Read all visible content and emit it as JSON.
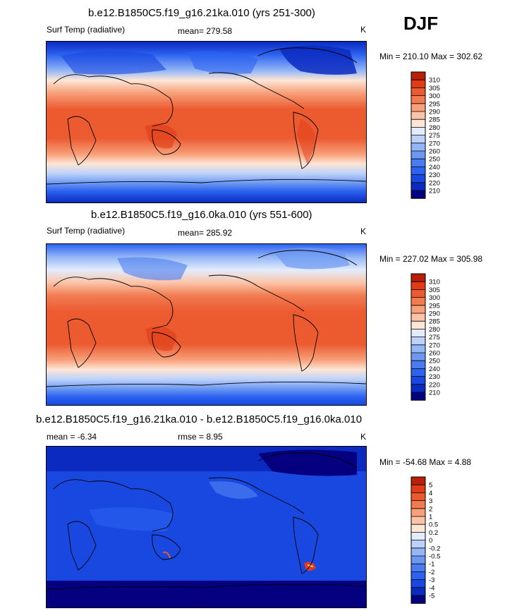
{
  "season": "DJF",
  "panels": [
    {
      "title": "b.e12.B1850C5.f19_g16.21ka.010 (yrs 251-300)",
      "left_label": "Surf Temp (radiative)",
      "mean_label": "mean= 279.58",
      "rmse_label": "",
      "units": "K",
      "minmax": "Min = 210.10 Max = 302.62",
      "field": "temp_cold"
    },
    {
      "title": "b.e12.B1850C5.f19_g16.0ka.010 (yrs 551-600)",
      "left_label": "Surf Temp (radiative)",
      "mean_label": "mean= 285.92",
      "rmse_label": "",
      "units": "K",
      "minmax": "Min = 227.02 Max = 305.98",
      "field": "temp_warm"
    },
    {
      "title": "b.e12.B1850C5.f19_g16.21ka.010 - b.e12.B1850C5.f19_g16.0ka.010",
      "left_label": "mean =  -6.34",
      "mean_label": "rmse =   8.95",
      "rmse_label": "",
      "units": "K",
      "minmax": "Min = -54.68 Max =   4.88",
      "field": "diff"
    }
  ],
  "chart_data": [
    {
      "type": "heatmap",
      "title": "b.e12.B1850C5.f19_g16.21ka.010 (yrs 251-300)",
      "variable": "Surf Temp (radiative)",
      "units": "K",
      "mean": 279.58,
      "min": 210.1,
      "max": 302.62,
      "colorbar": {
        "levels": [
          210,
          220,
          230,
          240,
          250,
          260,
          270,
          275,
          280,
          285,
          290,
          295,
          300,
          305,
          310
        ],
        "tick_labels": [
          "210",
          "220",
          "230",
          "240",
          "250",
          "260",
          "270",
          "275",
          "280",
          "285",
          "290",
          "295",
          "300",
          "305",
          "310"
        ],
        "colors": [
          "#050080",
          "#0a2ac0",
          "#1848e0",
          "#2c62f0",
          "#4a7cf0",
          "#6c98f2",
          "#94b6f6",
          "#bcd2fa",
          "#e2ecfc",
          "#fde6d6",
          "#fbc4a8",
          "#f7a07a",
          "#f27c52",
          "#ec5a30",
          "#e03c18",
          "#b81e08"
        ]
      }
    },
    {
      "type": "heatmap",
      "title": "b.e12.B1850C5.f19_g16.0ka.010 (yrs 551-600)",
      "variable": "Surf Temp (radiative)",
      "units": "K",
      "mean": 285.92,
      "min": 227.02,
      "max": 305.98,
      "colorbar": {
        "levels": [
          210,
          220,
          230,
          240,
          250,
          260,
          270,
          275,
          280,
          285,
          290,
          295,
          300,
          305,
          310
        ],
        "tick_labels": [
          "210",
          "220",
          "230",
          "240",
          "250",
          "260",
          "270",
          "275",
          "280",
          "285",
          "290",
          "295",
          "300",
          "305",
          "310"
        ],
        "colors": [
          "#050080",
          "#0a2ac0",
          "#1848e0",
          "#2c62f0",
          "#4a7cf0",
          "#6c98f2",
          "#94b6f6",
          "#bcd2fa",
          "#e2ecfc",
          "#fde6d6",
          "#fbc4a8",
          "#f7a07a",
          "#f27c52",
          "#ec5a30",
          "#e03c18",
          "#b81e08"
        ]
      }
    },
    {
      "type": "heatmap",
      "title": "b.e12.B1850C5.f19_g16.21ka.010 - b.e12.B1850C5.f19_g16.0ka.010",
      "units": "K",
      "mean": -6.34,
      "rmse": 8.95,
      "min": -54.68,
      "max": 4.88,
      "colorbar": {
        "levels": [
          -5,
          -4,
          -3,
          -2,
          -1,
          -0.5,
          -0.2,
          0,
          0.2,
          0.5,
          1,
          2,
          3,
          4,
          5
        ],
        "tick_labels": [
          "-5",
          "-4",
          "-3",
          "-2",
          "-1",
          "-0.5",
          "-0.2",
          "0",
          "0.2",
          "0.5",
          "1",
          "2",
          "3",
          "4",
          "5"
        ],
        "colors": [
          "#050080",
          "#0a2ac0",
          "#1848e0",
          "#2c62f0",
          "#4a7cf0",
          "#6c98f2",
          "#94b6f6",
          "#bcd2fa",
          "#e2ecfc",
          "#fde6d6",
          "#fbc4a8",
          "#f7a07a",
          "#f27c52",
          "#ec5a30",
          "#e03c18",
          "#b81e08"
        ]
      }
    }
  ]
}
